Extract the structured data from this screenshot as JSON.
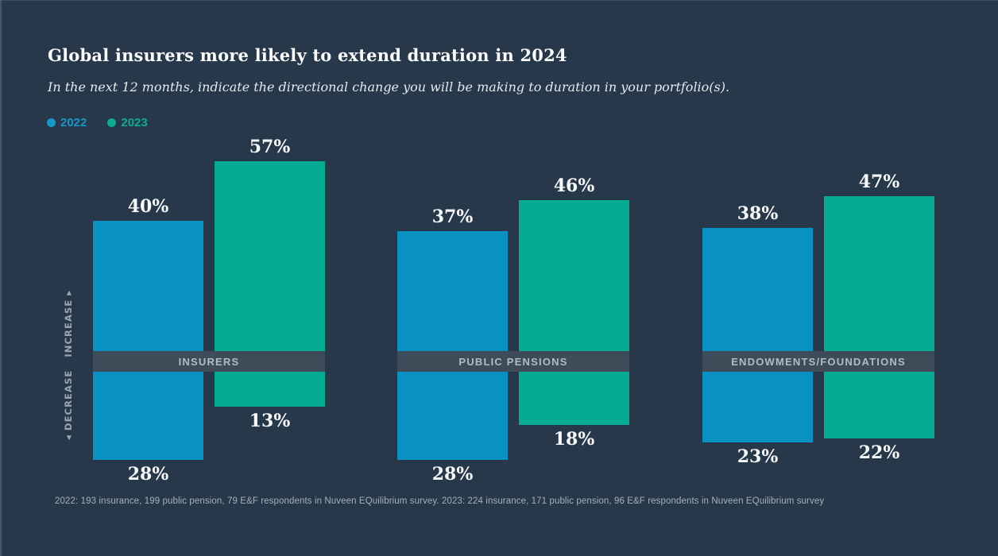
{
  "title": "Global insurers more likely to extend duration in 2024",
  "subtitle": "In the next 12 months, indicate the directional change you will be making to duration in your portfolio(s).",
  "legend": {
    "items": [
      {
        "label": "2022",
        "color": "#1796c9"
      },
      {
        "label": "2023",
        "color": "#0cac93"
      }
    ]
  },
  "axis": {
    "increase_label": "INCREASE",
    "decrease_label": "DECREASE",
    "up_arrow": "▶",
    "down_arrow": "◀"
  },
  "footnote": "2022: 193 insurance, 199 public pension, 79 E&F respondents in Nuveen EQuilibrium survey. 2023: 224 insurance, 171 public pension, 96 E&F respondents in Nuveen EQuilibrium survey",
  "colors": {
    "background": "#263849",
    "band": "#3e4c5a",
    "band_text": "#b3bbc2",
    "axis_text": "#9aa5af",
    "value_text": "#f6f8f9",
    "series_2022": "#0991c4",
    "series_2023": "#03ab92"
  },
  "chart_data": {
    "type": "bar",
    "variant": "diverging vertical (increase up / decrease down from center category band)",
    "unit": "%",
    "categories": [
      "INSURERS",
      "PUBLIC PENSIONS",
      "ENDOWMENTS/FOUNDATIONS"
    ],
    "series": [
      {
        "name": "2022",
        "color": "#0991c4",
        "increase": [
          40,
          37,
          38
        ],
        "decrease": [
          28,
          28,
          23
        ],
        "increase_labels": [
          "40%",
          "37%",
          "38%"
        ],
        "decrease_labels": [
          "28%",
          "28%",
          "23%"
        ]
      },
      {
        "name": "2023",
        "color": "#03ab92",
        "increase": [
          57,
          46,
          47
        ],
        "decrease": [
          13,
          18,
          22
        ],
        "increase_labels": [
          "57%",
          "46%",
          "47%"
        ],
        "decrease_labels": [
          "13%",
          "18%",
          "22%"
        ]
      }
    ],
    "axis_range_percent": [
      0,
      60
    ],
    "legend_position": "top-left",
    "grid": false
  }
}
